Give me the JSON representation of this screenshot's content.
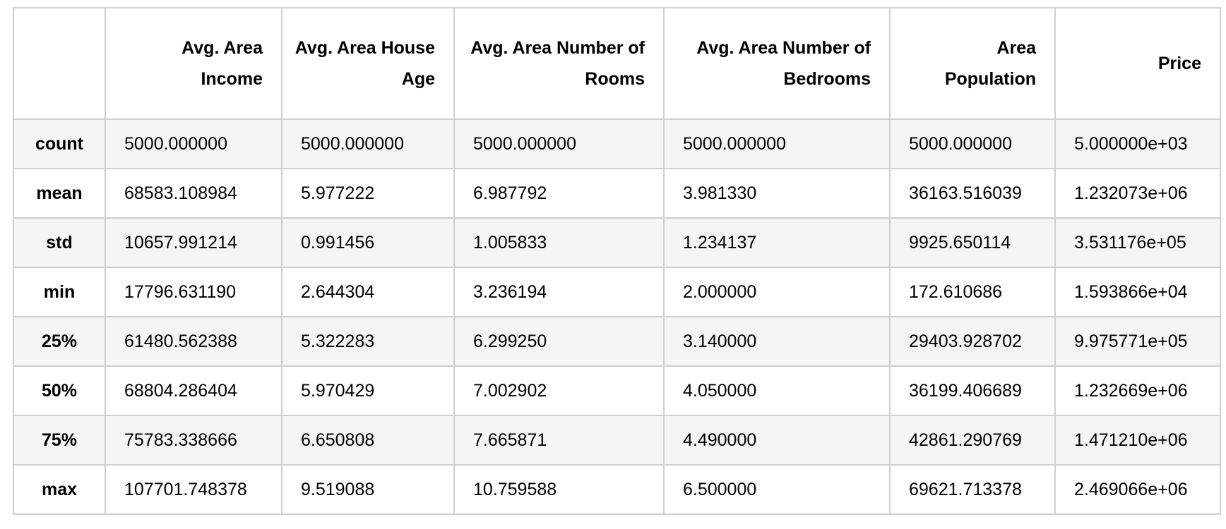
{
  "table": {
    "columns": [
      "",
      "Avg. Area Income",
      "Avg. Area House Age",
      "Avg. Area Number of Rooms",
      "Avg. Area Number of Bedrooms",
      "Area Population",
      "Price"
    ],
    "rows": [
      {
        "label": "count",
        "values": [
          "5000.000000",
          "5000.000000",
          "5000.000000",
          "5000.000000",
          "5000.000000",
          "5.000000e+03"
        ]
      },
      {
        "label": "mean",
        "values": [
          "68583.108984",
          "5.977222",
          "6.987792",
          "3.981330",
          "36163.516039",
          "1.232073e+06"
        ]
      },
      {
        "label": "std",
        "values": [
          "10657.991214",
          "0.991456",
          "1.005833",
          "1.234137",
          "9925.650114",
          "3.531176e+05"
        ]
      },
      {
        "label": "min",
        "values": [
          "17796.631190",
          "2.644304",
          "3.236194",
          "2.000000",
          "172.610686",
          "1.593866e+04"
        ]
      },
      {
        "label": "25%",
        "values": [
          "61480.562388",
          "5.322283",
          "6.299250",
          "3.140000",
          "29403.928702",
          "9.975771e+05"
        ]
      },
      {
        "label": "50%",
        "values": [
          "68804.286404",
          "5.970429",
          "7.002902",
          "4.050000",
          "36199.406689",
          "1.232669e+06"
        ]
      },
      {
        "label": "75%",
        "values": [
          "75783.338666",
          "6.650808",
          "7.665871",
          "4.490000",
          "42861.290769",
          "1.471210e+06"
        ]
      },
      {
        "label": "max",
        "values": [
          "107701.748378",
          "9.519088",
          "10.759588",
          "6.500000",
          "69621.713378",
          "2.469066e+06"
        ]
      }
    ]
  }
}
